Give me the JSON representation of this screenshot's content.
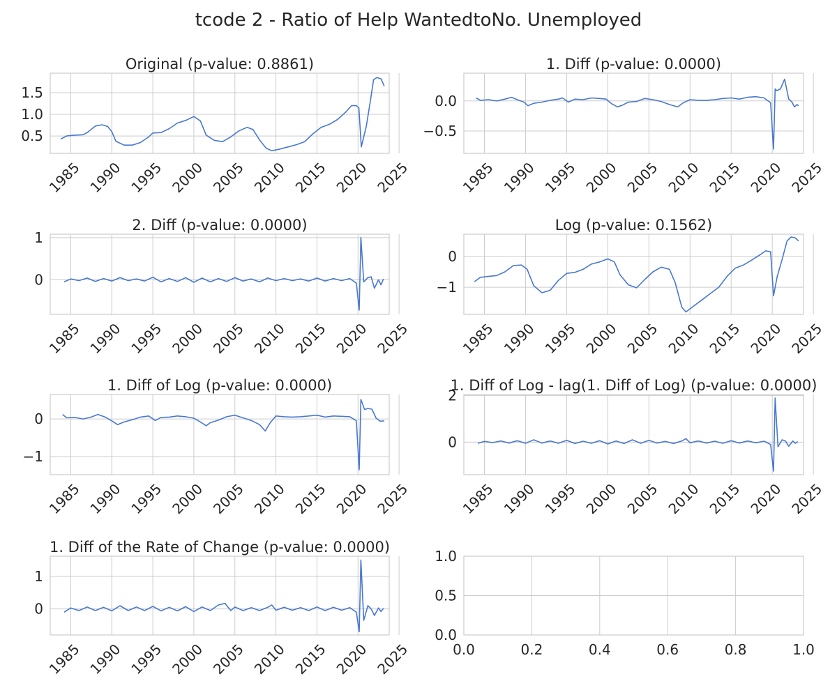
{
  "figure": {
    "suptitle": "tcode 2 - Ratio of Help WantedtoNo. Unemployed",
    "line_color": "#4878cf",
    "grid_color": "#cccccc",
    "spine_color": "#cccccc"
  },
  "chart_data": [
    {
      "type": "line",
      "title": "Original (p-value: 0.8861)",
      "xlim": [
        1982.5,
        2023.8
      ],
      "ylim": [
        0.1,
        1.95
      ],
      "xticks": [
        1985,
        1990,
        1995,
        2000,
        2005,
        2010,
        2015,
        2020,
        2025
      ],
      "yticks": [
        0.5,
        1.0,
        1.5
      ],
      "ytick_labels": [
        "0.5",
        "1.0",
        "1.5"
      ],
      "x": [
        1983.8,
        1984.5,
        1985.5,
        1986.5,
        1987,
        1988,
        1988.8,
        1989.5,
        1990,
        1990.5,
        1991.5,
        1992.5,
        1993.5,
        1994.5,
        1995,
        1996,
        1997,
        1998,
        1999,
        2000,
        2000.8,
        2001.5,
        2002.5,
        2003.5,
        2004.5,
        2005.5,
        2006.5,
        2007.2,
        2008,
        2008.8,
        2009.5,
        2010.5,
        2011.5,
        2012.5,
        2013.5,
        2014.5,
        2015.5,
        2016.5,
        2017.5,
        2018.5,
        2019.2,
        2019.8,
        2020.1,
        2020.4,
        2021,
        2021.5,
        2021.9,
        2022.3,
        2022.8,
        2023.2
      ],
      "y": [
        0.43,
        0.5,
        0.52,
        0.53,
        0.58,
        0.73,
        0.76,
        0.72,
        0.6,
        0.38,
        0.29,
        0.29,
        0.35,
        0.48,
        0.57,
        0.58,
        0.67,
        0.8,
        0.86,
        0.95,
        0.85,
        0.52,
        0.4,
        0.37,
        0.48,
        0.62,
        0.7,
        0.65,
        0.41,
        0.22,
        0.16,
        0.2,
        0.25,
        0.3,
        0.37,
        0.55,
        0.7,
        0.77,
        0.88,
        1.05,
        1.2,
        1.2,
        1.15,
        0.25,
        0.72,
        1.3,
        1.8,
        1.85,
        1.82,
        1.65
      ]
    },
    {
      "type": "line",
      "title": "1. Diff (p-value: 0.0000)",
      "xlim": [
        1982.5,
        2023.8
      ],
      "ylim": [
        -0.87,
        0.46
      ],
      "xticks": [
        1985,
        1990,
        1995,
        2000,
        2005,
        2010,
        2015,
        2020,
        2025
      ],
      "yticks": [
        -0.5,
        0.0
      ],
      "ytick_labels": [
        "−0.5",
        "0.0"
      ],
      "x": [
        1984,
        1984.5,
        1985.5,
        1986.5,
        1987.5,
        1988.3,
        1989,
        1989.8,
        1990.3,
        1991,
        1992,
        1993,
        1994,
        1994.5,
        1995.2,
        1996,
        1997,
        1998,
        1999,
        1999.8,
        2000.5,
        2001.2,
        2001.8,
        2002.5,
        2003.5,
        2004.5,
        2005.5,
        2006.5,
        2007.5,
        2008.5,
        2009.2,
        2010,
        2011,
        2012,
        2013,
        2014,
        2015,
        2016,
        2017,
        2018,
        2019,
        2019.8,
        2020.15,
        2020.35,
        2020.55,
        2021,
        2021.5,
        2022,
        2022.4,
        2022.7,
        2023,
        2023.2
      ],
      "y": [
        0.05,
        0.01,
        0.02,
        0.0,
        0.03,
        0.06,
        0.02,
        -0.02,
        -0.08,
        -0.04,
        -0.02,
        0.01,
        0.03,
        0.05,
        -0.02,
        0.03,
        0.02,
        0.05,
        0.04,
        0.03,
        -0.05,
        -0.1,
        -0.07,
        -0.02,
        -0.01,
        0.04,
        0.02,
        -0.01,
        -0.06,
        -0.1,
        -0.03,
        0.02,
        0.01,
        0.01,
        0.02,
        0.04,
        0.05,
        0.03,
        0.06,
        0.07,
        0.05,
        -0.03,
        -0.8,
        0.2,
        0.17,
        0.2,
        0.36,
        0.03,
        -0.02,
        -0.1,
        -0.06,
        -0.08
      ]
    },
    {
      "type": "line",
      "title": "2. Diff (p-value: 0.0000)",
      "xlim": [
        1982.5,
        2023.8
      ],
      "ylim": [
        -0.82,
        1.08
      ],
      "xticks": [
        1985,
        1990,
        1995,
        2000,
        2005,
        2010,
        2015,
        2020,
        2025
      ],
      "yticks": [
        0,
        1
      ],
      "ytick_labels": [
        "0",
        "1"
      ],
      "x": [
        1984.2,
        1985,
        1986,
        1987,
        1988,
        1989,
        1990,
        1991,
        1992,
        1993,
        1994,
        1995,
        1996,
        1997,
        1998,
        1999,
        2000,
        2001,
        2002,
        2003,
        2004,
        2005,
        2006,
        2007,
        2008,
        2009,
        2010,
        2011,
        2012,
        2013,
        2014,
        2015,
        2016,
        2017,
        2018,
        2019,
        2019.8,
        2020.15,
        2020.35,
        2020.7,
        2021.2,
        2021.6,
        2022,
        2022.5,
        2022.8,
        2023.1
      ],
      "y": [
        -0.05,
        0.02,
        -0.02,
        0.04,
        -0.04,
        0.03,
        -0.03,
        0.05,
        -0.02,
        0.02,
        -0.03,
        0.06,
        -0.05,
        0.03,
        -0.04,
        0.05,
        -0.06,
        0.04,
        -0.05,
        0.03,
        -0.04,
        0.05,
        -0.03,
        0.02,
        -0.05,
        0.04,
        -0.02,
        0.03,
        -0.02,
        0.02,
        -0.03,
        0.04,
        -0.03,
        0.03,
        -0.02,
        0.03,
        -0.08,
        -0.72,
        1.0,
        -0.05,
        0.05,
        0.07,
        -0.2,
        0.0,
        -0.12,
        0.02
      ]
    },
    {
      "type": "line",
      "title": "Log (p-value: 0.1562)",
      "xlim": [
        1982.5,
        2023.8
      ],
      "ylim": [
        -1.88,
        0.72
      ],
      "xticks": [
        1985,
        1990,
        1995,
        2000,
        2005,
        2010,
        2015,
        2020,
        2025
      ],
      "yticks": [
        -1,
        0
      ],
      "ytick_labels": [
        "−1",
        "0"
      ],
      "x": [
        1983.8,
        1984.5,
        1985.5,
        1986.5,
        1987.5,
        1988.5,
        1989.5,
        1990.2,
        1991,
        1992,
        1993,
        1994,
        1995,
        1996,
        1997,
        1998,
        1999,
        2000,
        2000.8,
        2001.5,
        2002.5,
        2003.5,
        2004.5,
        2005.5,
        2006.5,
        2007.5,
        2008.2,
        2009,
        2009.5,
        2010.5,
        2011.5,
        2012.5,
        2013.5,
        2014.5,
        2015.5,
        2016.5,
        2017.5,
        2018.5,
        2019.2,
        2019.8,
        2020.15,
        2020.6,
        2021.2,
        2021.8,
        2022.3,
        2022.8,
        2023.2
      ],
      "y": [
        -0.82,
        -0.68,
        -0.65,
        -0.62,
        -0.5,
        -0.3,
        -0.28,
        -0.42,
        -0.95,
        -1.18,
        -1.1,
        -0.78,
        -0.55,
        -0.52,
        -0.42,
        -0.25,
        -0.18,
        -0.08,
        -0.18,
        -0.6,
        -0.92,
        -1.02,
        -0.75,
        -0.5,
        -0.35,
        -0.42,
        -0.85,
        -1.65,
        -1.8,
        -1.6,
        -1.4,
        -1.2,
        -1.0,
        -0.65,
        -0.38,
        -0.28,
        -0.12,
        0.05,
        0.18,
        0.15,
        -1.28,
        -0.65,
        -0.1,
        0.5,
        0.63,
        0.6,
        0.5
      ]
    },
    {
      "type": "line",
      "title": "1. Diff of Log (p-value: 0.0000)",
      "xlim": [
        1982.5,
        2023.8
      ],
      "ylim": [
        -1.48,
        0.65
      ],
      "xticks": [
        1985,
        1990,
        1995,
        2000,
        2005,
        2010,
        2015,
        2020,
        2025
      ],
      "yticks": [
        -1,
        0
      ],
      "ytick_labels": [
        "−1",
        "0"
      ],
      "x": [
        1984,
        1984.5,
        1985.5,
        1986.5,
        1987.5,
        1988.3,
        1989.2,
        1990,
        1990.7,
        1991.5,
        1992.5,
        1993.5,
        1994.5,
        1995.3,
        1996,
        1997,
        1998,
        1999,
        2000,
        2000.8,
        2001.5,
        2002,
        2003,
        2004,
        2005,
        2006,
        2007,
        2008,
        2008.7,
        2009.3,
        2010,
        2011,
        2012,
        2013,
        2014,
        2015,
        2016,
        2017,
        2018,
        2019,
        2019.8,
        2020.15,
        2020.35,
        2020.8,
        2021.2,
        2021.7,
        2022.2,
        2022.7,
        2023.2
      ],
      "y": [
        0.12,
        0.03,
        0.04,
        0.0,
        0.05,
        0.12,
        0.05,
        -0.05,
        -0.15,
        -0.08,
        -0.02,
        0.05,
        0.08,
        -0.04,
        0.04,
        0.05,
        0.08,
        0.06,
        0.02,
        -0.08,
        -0.18,
        -0.1,
        -0.03,
        0.06,
        0.1,
        0.03,
        -0.04,
        -0.15,
        -0.32,
        -0.1,
        0.08,
        0.06,
        0.05,
        0.06,
        0.08,
        0.1,
        0.05,
        0.08,
        0.07,
        0.06,
        -0.05,
        -1.35,
        0.52,
        0.25,
        0.28,
        0.26,
        0.02,
        -0.06,
        -0.05
      ]
    },
    {
      "type": "line",
      "title": "1. Diff of Log - lag(1. Diff of Log) (p-value: 0.0000)",
      "xlim": [
        1982.5,
        2023.8
      ],
      "ylim": [
        -1.4,
        2.05
      ],
      "xticks": [
        1985,
        1990,
        1995,
        2000,
        2005,
        2010,
        2015,
        2020,
        2025
      ],
      "yticks": [
        0,
        2
      ],
      "ytick_labels": [
        "0",
        "2"
      ],
      "x": [
        1984.2,
        1985,
        1986,
        1987,
        1988,
        1989,
        1990,
        1991,
        1992,
        1993,
        1994,
        1995,
        1996,
        1997,
        1998,
        1999,
        2000,
        2001,
        2002,
        2003,
        2004,
        2005,
        2006,
        2007,
        2008,
        2009,
        2009.5,
        2010,
        2011,
        2012,
        2013,
        2014,
        2015,
        2016,
        2017,
        2018,
        2019,
        2019.8,
        2020.15,
        2020.35,
        2020.7,
        2021.2,
        2021.6,
        2022,
        2022.5,
        2022.8,
        2023.1
      ],
      "y": [
        -0.05,
        0.03,
        -0.02,
        0.05,
        -0.04,
        0.06,
        -0.05,
        0.1,
        -0.04,
        0.05,
        -0.05,
        0.08,
        -0.06,
        0.04,
        -0.05,
        0.06,
        -0.08,
        0.05,
        -0.06,
        0.1,
        -0.05,
        0.08,
        -0.04,
        0.03,
        -0.06,
        0.05,
        0.15,
        -0.03,
        0.05,
        -0.04,
        0.04,
        -0.05,
        0.06,
        -0.04,
        0.05,
        -0.03,
        0.04,
        -0.1,
        -1.25,
        1.9,
        -0.2,
        0.1,
        0.05,
        -0.18,
        0.05,
        -0.05,
        0.02
      ]
    },
    {
      "type": "line",
      "title": "1. Diff of the Rate of Change (p-value: 0.0000)",
      "xlim": [
        1982.5,
        2023.8
      ],
      "ylim": [
        -0.8,
        1.62
      ],
      "xticks": [
        1985,
        1990,
        1995,
        2000,
        2005,
        2010,
        2015,
        2020,
        2025
      ],
      "yticks": [
        0,
        1
      ],
      "ytick_labels": [
        "0",
        "1"
      ],
      "x": [
        1984.2,
        1985,
        1986,
        1987,
        1988,
        1989,
        1990,
        1991,
        1992,
        1993,
        1994,
        1995,
        1996,
        1997,
        1998,
        1999,
        2000,
        2001,
        2002,
        2003,
        2003.8,
        2004.5,
        2005,
        2006,
        2007,
        2008,
        2009,
        2009.5,
        2010,
        2011,
        2012,
        2013,
        2014,
        2015,
        2016,
        2017,
        2018,
        2019,
        2019.8,
        2020.15,
        2020.35,
        2020.7,
        2021.2,
        2021.6,
        2022,
        2022.5,
        2022.8,
        2023.1
      ],
      "y": [
        -0.1,
        0.03,
        -0.05,
        0.06,
        -0.05,
        0.05,
        -0.06,
        0.1,
        -0.05,
        0.06,
        -0.05,
        0.08,
        -0.06,
        0.05,
        -0.06,
        0.07,
        -0.08,
        0.06,
        -0.05,
        0.12,
        0.17,
        -0.05,
        0.06,
        -0.05,
        0.04,
        -0.05,
        0.05,
        0.12,
        -0.04,
        0.05,
        -0.04,
        0.04,
        -0.05,
        0.06,
        -0.05,
        0.05,
        -0.04,
        0.04,
        -0.1,
        -0.7,
        1.5,
        -0.35,
        0.1,
        0.0,
        -0.2,
        0.03,
        -0.08,
        0.02
      ]
    },
    {
      "type": "line",
      "title": "",
      "empty": true,
      "xlim": [
        0,
        1
      ],
      "ylim": [
        0,
        1
      ],
      "xticks": [
        0.0,
        0.2,
        0.4,
        0.6,
        0.8,
        1.0
      ],
      "xtick_labels": [
        "0.0",
        "0.2",
        "0.4",
        "0.6",
        "0.8",
        "1.0"
      ],
      "yticks": [
        0.0,
        0.5,
        1.0
      ],
      "ytick_labels": [
        "0.0",
        "0.5",
        "1.0"
      ]
    }
  ]
}
